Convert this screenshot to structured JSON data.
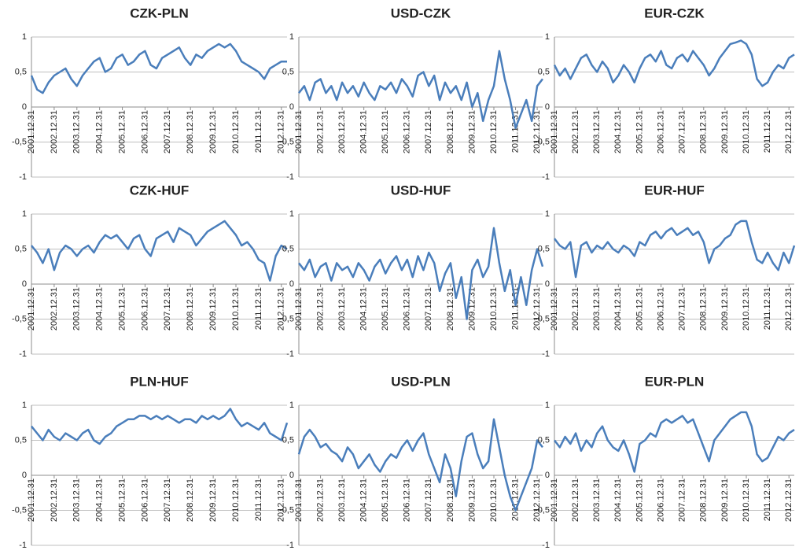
{
  "chart_data": [
    {
      "type": "line",
      "title": "CZK-PLN",
      "color": "#4a7ebb",
      "grid": true,
      "ylim": [
        -1,
        1
      ],
      "yticks": [
        -1,
        {
          "value": -0.5,
          "label": "-0,5"
        },
        0,
        {
          "value": 0.5,
          "label": "0,5"
        },
        1
      ],
      "categories": [
        "2001.12.31",
        null,
        null,
        null,
        "2002.12.31",
        null,
        null,
        null,
        "2003.12.31",
        null,
        null,
        null,
        "2004.12.31",
        null,
        null,
        null,
        "2005.12.31",
        null,
        null,
        null,
        "2006.12.31",
        null,
        null,
        null,
        "2007.12.31",
        null,
        null,
        null,
        "2008.12.31",
        null,
        null,
        null,
        "2009.12.31",
        null,
        null,
        null,
        "2010.12.31",
        null,
        null,
        null,
        "2011.12.31",
        null,
        null,
        null,
        "2012.12.31",
        null
      ],
      "values": [
        0.45,
        0.25,
        0.2,
        0.35,
        0.45,
        0.5,
        0.55,
        0.4,
        0.3,
        0.45,
        0.55,
        0.65,
        0.7,
        0.5,
        0.55,
        0.7,
        0.75,
        0.6,
        0.65,
        0.75,
        0.8,
        0.6,
        0.55,
        0.7,
        0.75,
        0.8,
        0.85,
        0.7,
        0.6,
        0.75,
        0.7,
        0.8,
        0.85,
        0.9,
        0.85,
        0.9,
        0.8,
        0.65,
        0.6,
        0.55,
        0.5,
        0.4,
        0.55,
        0.6,
        0.65,
        0.65
      ]
    },
    {
      "type": "line",
      "title": "USD-CZK",
      "color": "#4a7ebb",
      "grid": true,
      "ylim": [
        -1,
        1
      ],
      "yticks": [
        -1,
        {
          "value": -0.5,
          "label": "-0,5"
        },
        0,
        {
          "value": 0.5,
          "label": "0,5"
        },
        1
      ],
      "categories": [
        "2001.12.31",
        null,
        null,
        null,
        "2002.12.31",
        null,
        null,
        null,
        "2003.12.31",
        null,
        null,
        null,
        "2004.12.31",
        null,
        null,
        null,
        "2005.12.31",
        null,
        null,
        null,
        "2006.12.31",
        null,
        null,
        null,
        "2007.12.31",
        null,
        null,
        null,
        "2008.12.31",
        null,
        null,
        null,
        "2009.12.31",
        null,
        null,
        null,
        "2010.12.31",
        null,
        null,
        null,
        "2011.12.31",
        null,
        null,
        null,
        "2012.12.31",
        null
      ],
      "values": [
        0.2,
        0.3,
        0.1,
        0.35,
        0.4,
        0.2,
        0.3,
        0.1,
        0.35,
        0.2,
        0.3,
        0.15,
        0.35,
        0.2,
        0.1,
        0.3,
        0.25,
        0.35,
        0.2,
        0.4,
        0.3,
        0.15,
        0.45,
        0.5,
        0.3,
        0.45,
        0.1,
        0.35,
        0.2,
        0.3,
        0.1,
        0.35,
        0,
        0.2,
        -0.2,
        0.1,
        0.3,
        0.8,
        0.4,
        0.1,
        -0.3,
        -0.1,
        0.1,
        -0.2,
        0.3,
        0.4
      ]
    },
    {
      "type": "line",
      "title": "EUR-CZK",
      "color": "#4a7ebb",
      "grid": true,
      "ylim": [
        -1,
        1
      ],
      "yticks": [
        -1,
        {
          "value": -0.5,
          "label": "-0,5"
        },
        0,
        {
          "value": 0.5,
          "label": "0,5"
        },
        1
      ],
      "categories": [
        "2001.12.31",
        null,
        null,
        null,
        "2002.12.31",
        null,
        null,
        null,
        "2003.12.31",
        null,
        null,
        null,
        "2004.12.31",
        null,
        null,
        null,
        "2005.12.31",
        null,
        null,
        null,
        "2006.12.31",
        null,
        null,
        null,
        "2007.12.31",
        null,
        null,
        null,
        "2008.12.31",
        null,
        null,
        null,
        "2009.12.31",
        null,
        null,
        null,
        "2010.12.31",
        null,
        null,
        null,
        "2011.12.31",
        null,
        null,
        null,
        "2012.12.31",
        null
      ],
      "values": [
        0.6,
        0.45,
        0.55,
        0.4,
        0.55,
        0.7,
        0.75,
        0.6,
        0.5,
        0.65,
        0.55,
        0.35,
        0.45,
        0.6,
        0.5,
        0.35,
        0.55,
        0.7,
        0.75,
        0.65,
        0.8,
        0.6,
        0.55,
        0.7,
        0.75,
        0.65,
        0.8,
        0.7,
        0.6,
        0.45,
        0.55,
        0.7,
        0.8,
        0.9,
        0.92,
        0.95,
        0.9,
        0.75,
        0.4,
        0.3,
        0.35,
        0.5,
        0.6,
        0.55,
        0.7,
        0.75
      ]
    },
    {
      "type": "line",
      "title": "CZK-HUF",
      "color": "#4a7ebb",
      "grid": true,
      "ylim": [
        -1,
        1
      ],
      "yticks": [
        -1,
        {
          "value": -0.5,
          "label": "-0,5"
        },
        0,
        {
          "value": 0.5,
          "label": "0,5"
        },
        1
      ],
      "categories": [
        "2001.12.31",
        null,
        null,
        null,
        "2002.12.31",
        null,
        null,
        null,
        "2003.12.31",
        null,
        null,
        null,
        "2004.12.31",
        null,
        null,
        null,
        "2005.12.31",
        null,
        null,
        null,
        "2006.12.31",
        null,
        null,
        null,
        "2007.12.31",
        null,
        null,
        null,
        "2008.12.31",
        null,
        null,
        null,
        "2009.12.31",
        null,
        null,
        null,
        "2010.12.31",
        null,
        null,
        null,
        "2011.12.31",
        null,
        null,
        null,
        "2012.12.31",
        null
      ],
      "values": [
        0.55,
        0.45,
        0.3,
        0.5,
        0.2,
        0.45,
        0.55,
        0.5,
        0.4,
        0.5,
        0.55,
        0.45,
        0.6,
        0.7,
        0.65,
        0.7,
        0.6,
        0.5,
        0.65,
        0.7,
        0.5,
        0.4,
        0.65,
        0.7,
        0.75,
        0.6,
        0.8,
        0.75,
        0.7,
        0.55,
        0.65,
        0.75,
        0.8,
        0.85,
        0.9,
        0.8,
        0.7,
        0.55,
        0.6,
        0.5,
        0.35,
        0.3,
        0.05,
        0.4,
        0.55,
        0.5
      ]
    },
    {
      "type": "line",
      "title": "USD-HUF",
      "color": "#4a7ebb",
      "grid": true,
      "ylim": [
        -1,
        1
      ],
      "yticks": [
        -1,
        {
          "value": -0.5,
          "label": "-0,5"
        },
        0,
        {
          "value": 0.5,
          "label": "0,5"
        },
        1
      ],
      "categories": [
        "2001.12.31",
        null,
        null,
        null,
        "2002.12.31",
        null,
        null,
        null,
        "2003.12.31",
        null,
        null,
        null,
        "2004.12.31",
        null,
        null,
        null,
        "2005.12.31",
        null,
        null,
        null,
        "2006.12.31",
        null,
        null,
        null,
        "2007.12.31",
        null,
        null,
        null,
        "2008.12.31",
        null,
        null,
        null,
        "2009.12.31",
        null,
        null,
        null,
        "2010.12.31",
        null,
        null,
        null,
        "2011.12.31",
        null,
        null,
        null,
        "2012.12.31",
        null
      ],
      "values": [
        0.3,
        0.2,
        0.35,
        0.1,
        0.25,
        0.3,
        0.05,
        0.3,
        0.2,
        0.25,
        0.1,
        0.3,
        0.2,
        0.05,
        0.25,
        0.35,
        0.15,
        0.3,
        0.4,
        0.2,
        0.35,
        0.1,
        0.4,
        0.2,
        0.45,
        0.3,
        -0.1,
        0.15,
        0.3,
        -0.2,
        0.1,
        -0.5,
        0.2,
        0.35,
        0.1,
        0.25,
        0.8,
        0.3,
        -0.1,
        0.2,
        -0.3,
        0.1,
        -0.3,
        0.2,
        0.5,
        0.25
      ]
    },
    {
      "type": "line",
      "title": "EUR-HUF",
      "color": "#4a7ebb",
      "grid": true,
      "ylim": [
        -1,
        1
      ],
      "yticks": [
        -1,
        {
          "value": -0.5,
          "label": "-0,5"
        },
        0,
        {
          "value": 0.5,
          "label": "0,5"
        },
        1
      ],
      "categories": [
        "2001.12.31",
        null,
        null,
        null,
        "2002.12.31",
        null,
        null,
        null,
        "2003.12.31",
        null,
        null,
        null,
        "2004.12.31",
        null,
        null,
        null,
        "2005.12.31",
        null,
        null,
        null,
        "2006.12.31",
        null,
        null,
        null,
        "2007.12.31",
        null,
        null,
        null,
        "2008.12.31",
        null,
        null,
        null,
        "2009.12.31",
        null,
        null,
        null,
        "2010.12.31",
        null,
        null,
        null,
        "2011.12.31",
        null,
        null,
        null,
        "2012.12.31",
        null
      ],
      "values": [
        0.65,
        0.55,
        0.5,
        0.6,
        0.1,
        0.55,
        0.6,
        0.45,
        0.55,
        0.5,
        0.6,
        0.5,
        0.45,
        0.55,
        0.5,
        0.4,
        0.6,
        0.55,
        0.7,
        0.75,
        0.65,
        0.75,
        0.8,
        0.7,
        0.75,
        0.8,
        0.7,
        0.75,
        0.6,
        0.3,
        0.5,
        0.55,
        0.65,
        0.7,
        0.85,
        0.9,
        0.9,
        0.6,
        0.35,
        0.3,
        0.45,
        0.3,
        0.2,
        0.45,
        0.3,
        0.55
      ]
    },
    {
      "type": "line",
      "title": "PLN-HUF",
      "color": "#4a7ebb",
      "grid": true,
      "ylim": [
        -1,
        1
      ],
      "yticks": [
        -1,
        {
          "value": -0.5,
          "label": "-0,5"
        },
        0,
        {
          "value": 0.5,
          "label": "0,5"
        },
        1
      ],
      "categories": [
        "2001.12.31",
        null,
        null,
        null,
        "2002.12.31",
        null,
        null,
        null,
        "2003.12.31",
        null,
        null,
        null,
        "2004.12.31",
        null,
        null,
        null,
        "2005.12.31",
        null,
        null,
        null,
        "2006.12.31",
        null,
        null,
        null,
        "2007.12.31",
        null,
        null,
        null,
        "2008.12.31",
        null,
        null,
        null,
        "2009.12.31",
        null,
        null,
        null,
        "2010.12.31",
        null,
        null,
        null,
        "2011.12.31",
        null,
        null,
        null,
        "2012.12.31",
        null
      ],
      "values": [
        0.7,
        0.6,
        0.5,
        0.65,
        0.55,
        0.5,
        0.6,
        0.55,
        0.5,
        0.6,
        0.65,
        0.5,
        0.45,
        0.55,
        0.6,
        0.7,
        0.75,
        0.8,
        0.8,
        0.85,
        0.85,
        0.8,
        0.85,
        0.8,
        0.85,
        0.8,
        0.75,
        0.8,
        0.8,
        0.75,
        0.85,
        0.8,
        0.85,
        0.8,
        0.85,
        0.95,
        0.8,
        0.7,
        0.75,
        0.7,
        0.65,
        0.75,
        0.6,
        0.55,
        0.5,
        0.75
      ]
    },
    {
      "type": "line",
      "title": "USD-PLN",
      "color": "#4a7ebb",
      "grid": true,
      "ylim": [
        -1,
        1
      ],
      "yticks": [
        -1,
        {
          "value": -0.5,
          "label": "-0,5"
        },
        0,
        {
          "value": 0.5,
          "label": "0,5"
        },
        1
      ],
      "categories": [
        "2001.12.31",
        null,
        null,
        null,
        "2002.12.31",
        null,
        null,
        null,
        "2003.12.31",
        null,
        null,
        null,
        "2004.12.31",
        null,
        null,
        null,
        "2005.12.31",
        null,
        null,
        null,
        "2006.12.31",
        null,
        null,
        null,
        "2007.12.31",
        null,
        null,
        null,
        "2008.12.31",
        null,
        null,
        null,
        "2009.12.31",
        null,
        null,
        null,
        "2010.12.31",
        null,
        null,
        null,
        "2011.12.31",
        null,
        null,
        null,
        "2012.12.31",
        null
      ],
      "values": [
        0.3,
        0.55,
        0.65,
        0.55,
        0.4,
        0.45,
        0.35,
        0.3,
        0.2,
        0.4,
        0.3,
        0.1,
        0.2,
        0.3,
        0.15,
        0.05,
        0.2,
        0.3,
        0.25,
        0.4,
        0.5,
        0.35,
        0.5,
        0.6,
        0.3,
        0.1,
        -0.1,
        0.3,
        0.1,
        -0.3,
        0.2,
        0.55,
        0.6,
        0.3,
        0.1,
        0.2,
        0.8,
        0.4,
        0,
        -0.3,
        -0.5,
        -0.3,
        -0.1,
        0.1,
        0.5,
        0.4
      ]
    },
    {
      "type": "line",
      "title": "EUR-PLN",
      "color": "#4a7ebb",
      "grid": true,
      "ylim": [
        -1,
        1
      ],
      "yticks": [
        -1,
        {
          "value": -0.5,
          "label": "-0,5"
        },
        0,
        {
          "value": 0.5,
          "label": "0,5"
        },
        1
      ],
      "categories": [
        "2001.12.31",
        null,
        null,
        null,
        "2002.12.31",
        null,
        null,
        null,
        "2003.12.31",
        null,
        null,
        null,
        "2004.12.31",
        null,
        null,
        null,
        "2005.12.31",
        null,
        null,
        null,
        "2006.12.31",
        null,
        null,
        null,
        "2007.12.31",
        null,
        null,
        null,
        "2008.12.31",
        null,
        null,
        null,
        "2009.12.31",
        null,
        null,
        null,
        "2010.12.31",
        null,
        null,
        null,
        "2011.12.31",
        null,
        null,
        null,
        "2012.12.31",
        null
      ],
      "values": [
        0.5,
        0.4,
        0.55,
        0.45,
        0.6,
        0.35,
        0.5,
        0.4,
        0.6,
        0.7,
        0.5,
        0.4,
        0.35,
        0.5,
        0.3,
        0.05,
        0.45,
        0.5,
        0.6,
        0.55,
        0.75,
        0.8,
        0.75,
        0.8,
        0.85,
        0.75,
        0.8,
        0.6,
        0.4,
        0.2,
        0.5,
        0.6,
        0.7,
        0.8,
        0.85,
        0.9,
        0.9,
        0.7,
        0.3,
        0.2,
        0.25,
        0.4,
        0.55,
        0.5,
        0.6,
        0.65
      ]
    }
  ]
}
